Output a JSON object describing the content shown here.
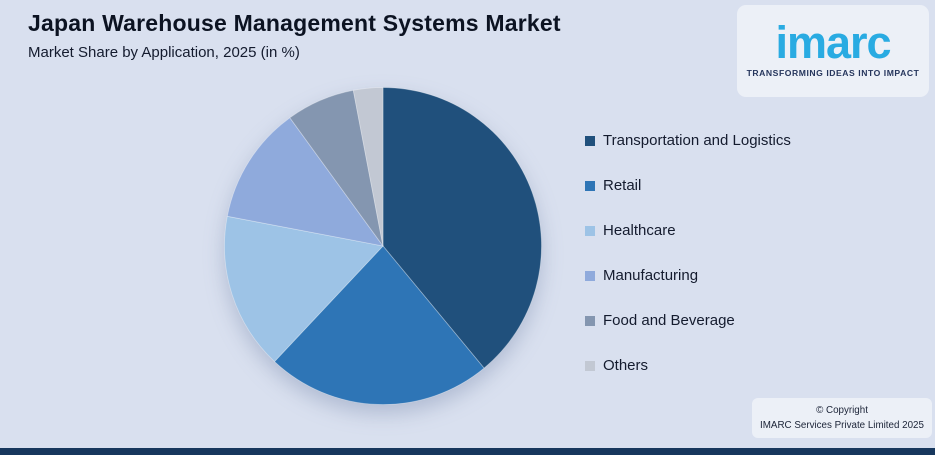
{
  "page": {
    "background_color": "#d9e0ef",
    "bottom_bar_color": "#17375d"
  },
  "header": {
    "title": "Japan Warehouse Management Systems Market",
    "subtitle": "Market Share by Application, 2025 (in %)"
  },
  "logo": {
    "wordmark": "imarc",
    "tagline": "TRANSFORMING IDEAS INTO IMPACT",
    "wordmark_color": "#29ABE2",
    "tagline_color": "#25355C"
  },
  "chart_data": {
    "type": "pie",
    "title": "Japan Warehouse Management Systems Market",
    "subtitle": "Market Share by Application, 2025 (in %)",
    "unit": "%",
    "data_labels_shown": false,
    "legend_position": "right",
    "start_angle_deg": 0,
    "direction": "clockwise",
    "categories": [
      "Transportation and Logistics",
      "Retail",
      "Healthcare",
      "Manufacturing",
      "Food and Beverage",
      "Others"
    ],
    "values": [
      39,
      23,
      16,
      12,
      7,
      3
    ],
    "colors": [
      "#20507C",
      "#2E75B6",
      "#9DC3E6",
      "#8FAADC",
      "#8496B0",
      "#C2C8D3"
    ]
  },
  "footer": {
    "copyright_line1": "© Copyright",
    "copyright_line2": "IMARC Services Private Limited 2025"
  }
}
